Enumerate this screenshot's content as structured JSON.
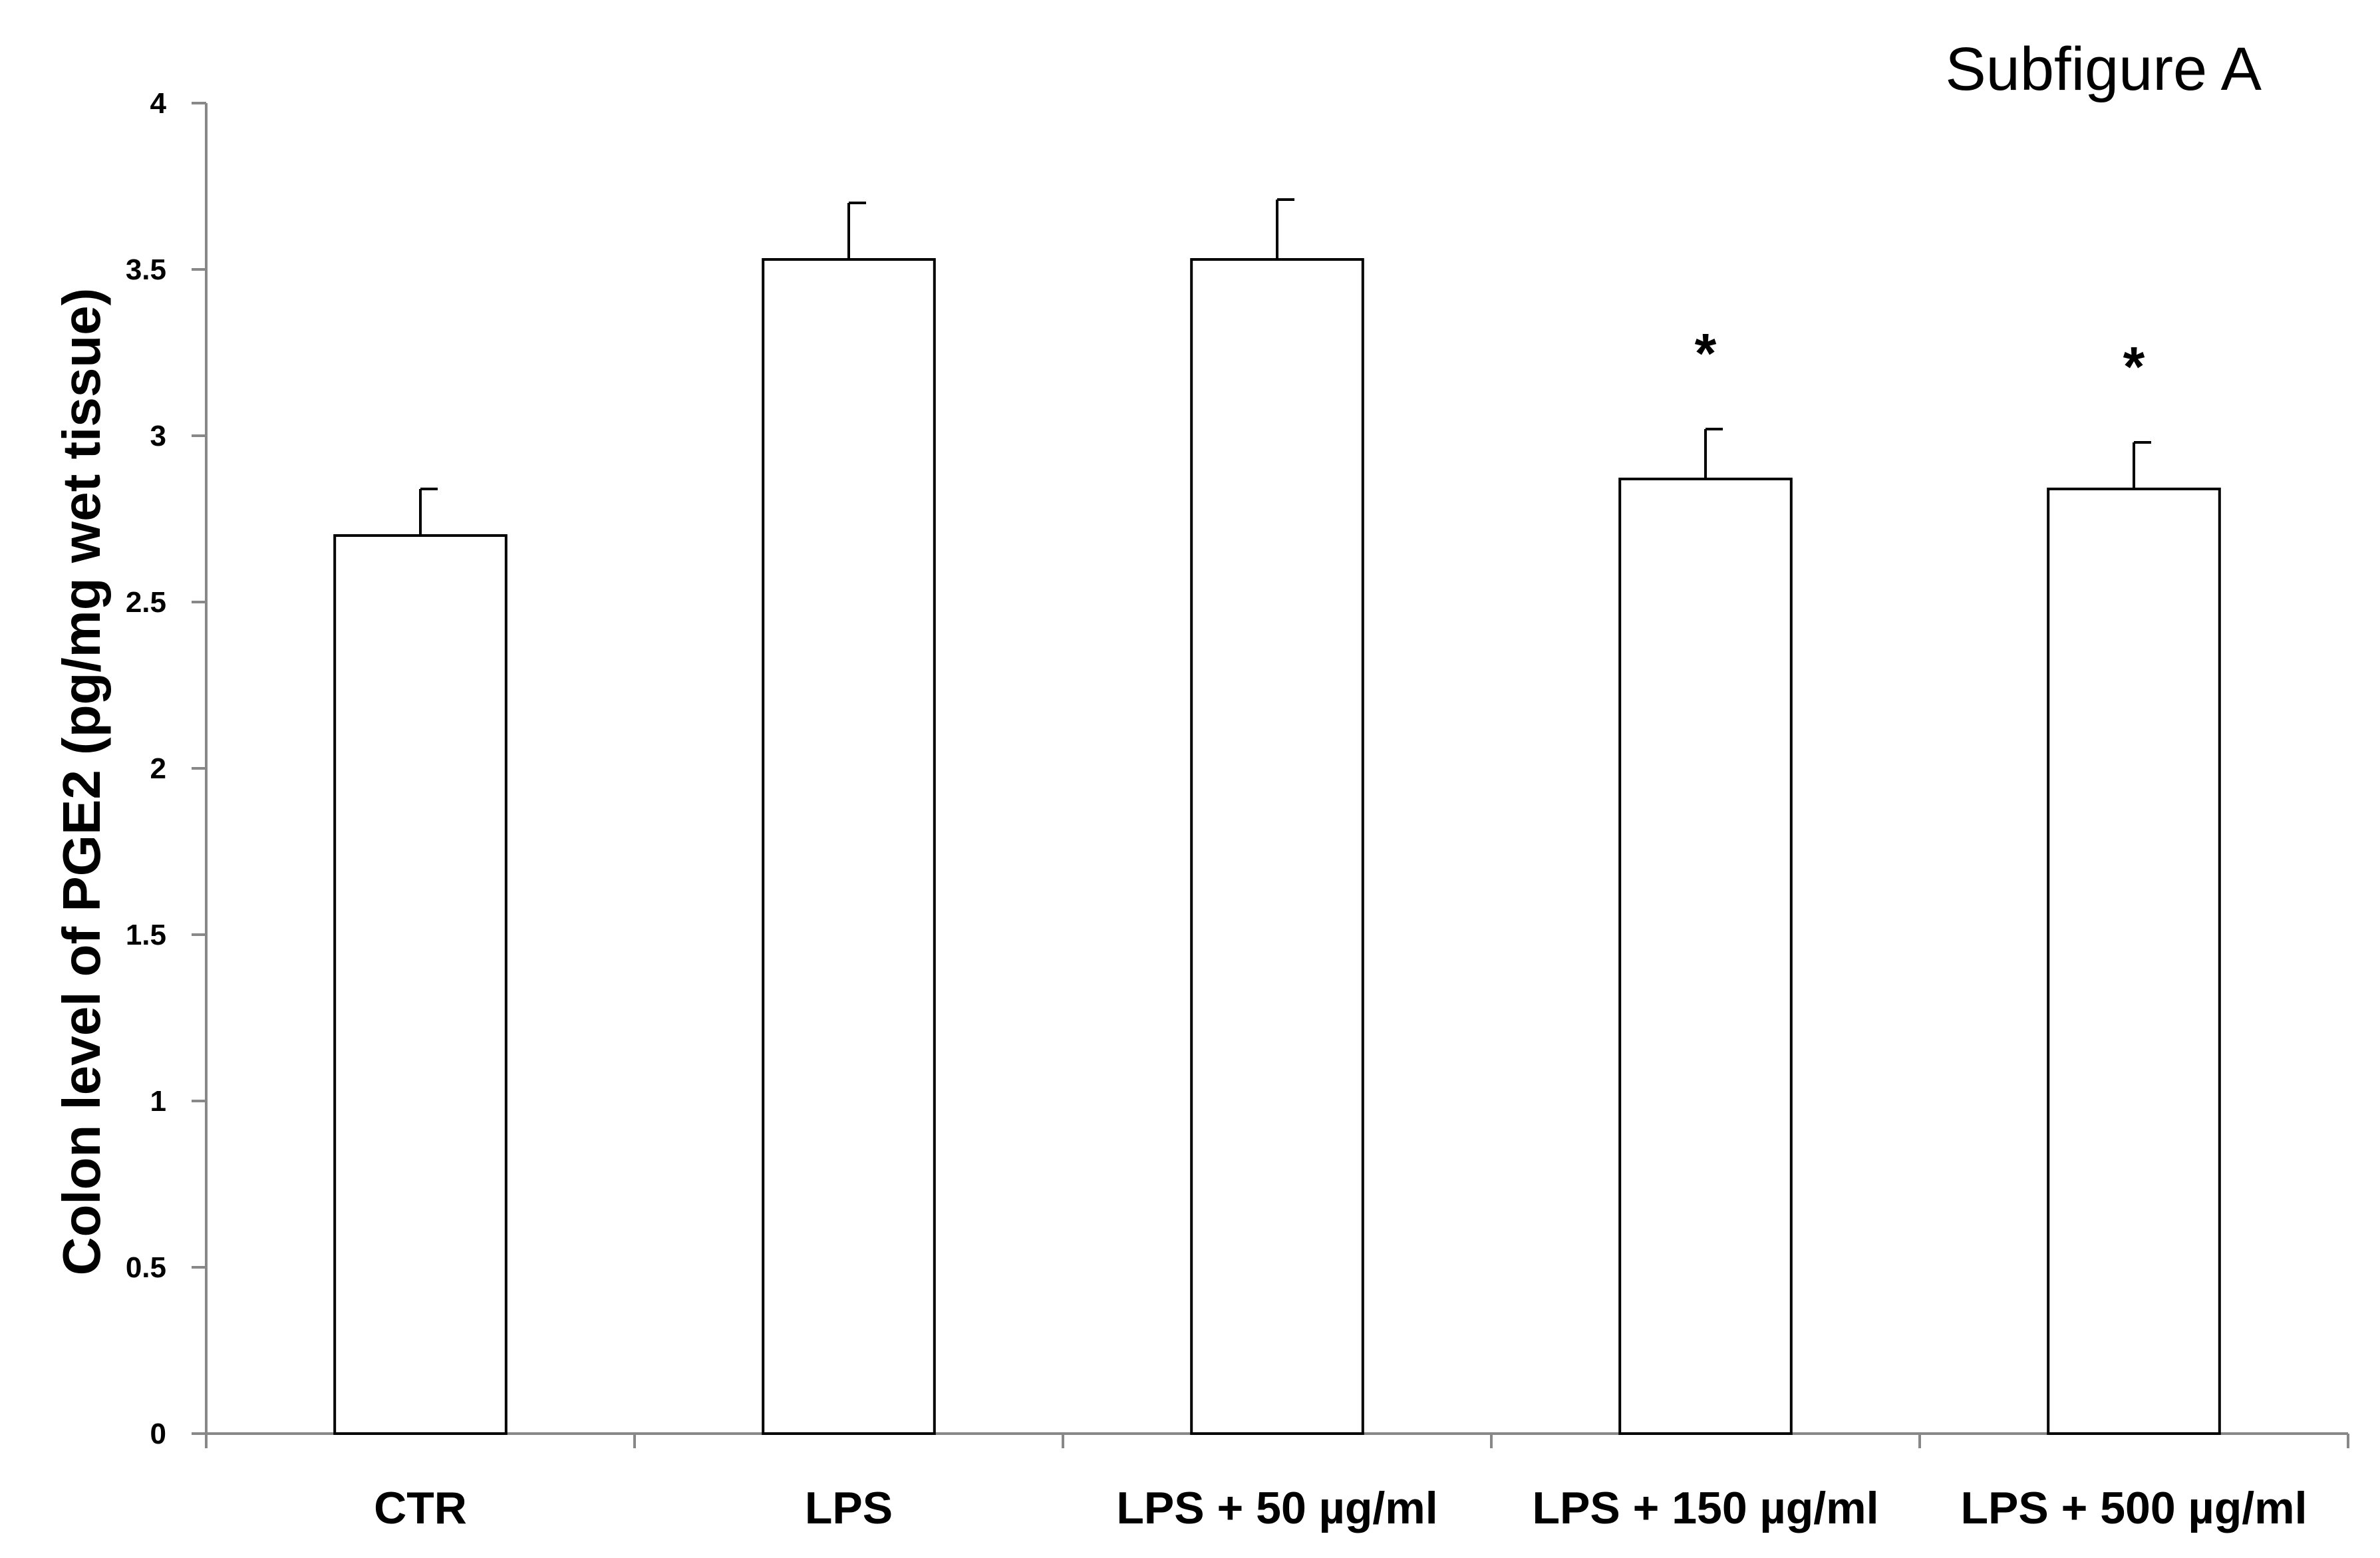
{
  "chart_data": {
    "type": "bar",
    "title": "Subfigure A",
    "xlabel": "",
    "ylabel": "Colon level of PGE2 (pg/mg wet tissue)",
    "ylim": [
      0,
      4
    ],
    "yticks": [
      "0",
      "0.5",
      "1",
      "1.5",
      "2",
      "2.5",
      "3",
      "3.5",
      "4"
    ],
    "categories": [
      "CTR",
      "LPS",
      "LPS + 50 µg/ml",
      "LPS + 150 µg/ml",
      "LPS + 500 µg/ml"
    ],
    "values": [
      2.7,
      3.53,
      3.53,
      2.87,
      2.84
    ],
    "errors": [
      0.14,
      0.17,
      0.18,
      0.15,
      0.14
    ],
    "significance": [
      "",
      "",
      "",
      "*",
      "*"
    ],
    "bar_color": "#ffffff",
    "edge_color": "#000000",
    "axis_color": "#888888",
    "grid": false
  }
}
